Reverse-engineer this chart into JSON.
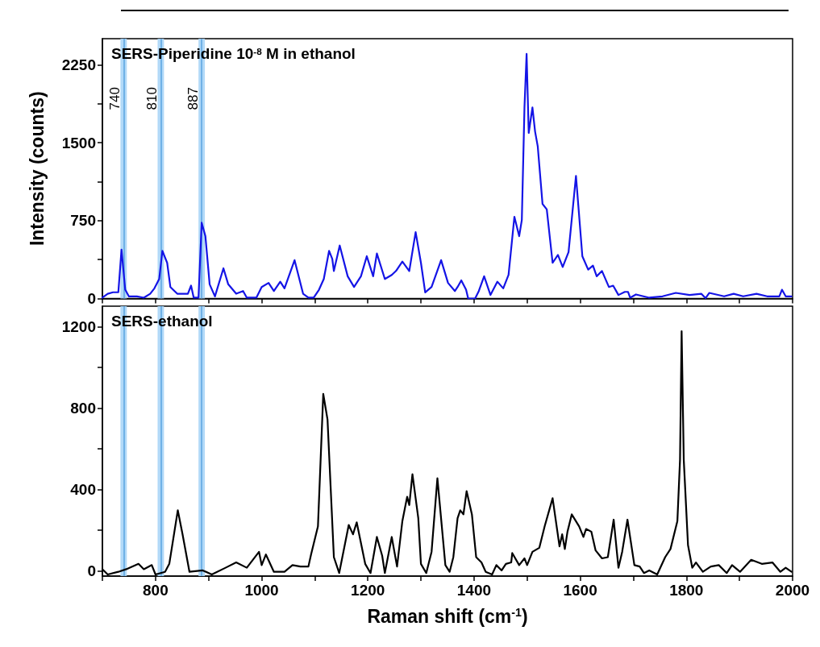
{
  "chart_data": [
    {
      "type": "line",
      "title": "SERS-Piperidine 10$^{-8}$ M in ethanol",
      "ylabel": "Intensity (counts)",
      "xlim": [
        700,
        2000
      ],
      "ylim": [
        0,
        2500
      ],
      "tick_labels": "y",
      "marker": "none",
      "line_style": "solid",
      "grid": false,
      "xticks": [
        {
          "value": 700,
          "label": null
        },
        {
          "value": 800,
          "label": null
        },
        {
          "value": 900,
          "label": null
        },
        {
          "value": 1000,
          "label": null
        },
        {
          "value": 1100,
          "label": null
        },
        {
          "value": 1200,
          "label": null
        },
        {
          "value": 1300,
          "label": null
        },
        {
          "value": 1400,
          "label": null
        },
        {
          "value": 1500,
          "label": null
        },
        {
          "value": 1600,
          "label": null
        },
        {
          "value": 1700,
          "label": null
        },
        {
          "value": 1800,
          "label": null
        },
        {
          "value": 1900,
          "label": null
        },
        {
          "value": 2000,
          "label": null
        }
      ],
      "yticks": [
        0,
        {
          "value": 375,
          "label": null
        },
        750,
        {
          "value": 1125,
          "label": null
        },
        1500,
        {
          "value": 1875,
          "label": null
        },
        2250
      ],
      "bands": [
        {
          "axis": "x",
          "from": 734,
          "to": 746,
          "color": "#a9d5f7"
        },
        {
          "axis": "x",
          "from": 804,
          "to": 816,
          "color": "#a9d5f7"
        },
        {
          "axis": "x",
          "from": 881,
          "to": 893,
          "color": "#a9d5f7"
        }
      ],
      "ref_lines": [
        {
          "axis": "x",
          "value": 740,
          "label": "740",
          "color": "#5ba3e0"
        },
        {
          "axis": "x",
          "value": 810,
          "label": "810",
          "color": "#5ba3e0"
        },
        {
          "axis": "x",
          "value": 887,
          "label": "887",
          "color": "#5ba3e0"
        }
      ],
      "series": [
        {
          "color": "#1414e6",
          "x": [
            700,
            710,
            720,
            730,
            736,
            743,
            750,
            765,
            778,
            790,
            798,
            807,
            813,
            822,
            828,
            841,
            861,
            867,
            872,
            881,
            887,
            894,
            902,
            912,
            928,
            937,
            952,
            965,
            972,
            990,
            1000,
            1013,
            1023,
            1035,
            1043,
            1062,
            1078,
            1088,
            1098,
            1108,
            1117,
            1127,
            1133,
            1136,
            1147,
            1162,
            1174,
            1187,
            1198,
            1210,
            1217,
            1232,
            1245,
            1253,
            1265,
            1278,
            1290,
            1300,
            1308,
            1320,
            1338,
            1351,
            1364,
            1369,
            1376,
            1385,
            1389,
            1402,
            1409,
            1419,
            1431,
            1444,
            1455,
            1465,
            1476,
            1485,
            1490,
            1495,
            1499,
            1503,
            1510,
            1515,
            1520,
            1529,
            1537,
            1548,
            1558,
            1567,
            1578,
            1592,
            1604,
            1615,
            1624,
            1631,
            1641,
            1654,
            1662,
            1672,
            1684,
            1690,
            1694,
            1705,
            1730,
            1755,
            1780,
            1806,
            1828,
            1836,
            1843,
            1871,
            1889,
            1907,
            1932,
            1952,
            1975,
            1980,
            1987,
            1998
          ],
          "values": [
            8,
            46,
            60,
            60,
            470,
            85,
            20,
            20,
            8,
            46,
            98,
            188,
            459,
            343,
            111,
            46,
            46,
            124,
            8,
            8,
            729,
            600,
            137,
            20,
            291,
            137,
            46,
            72,
            8,
            8,
            111,
            150,
            72,
            162,
            98,
            369,
            46,
            8,
            8,
            85,
            188,
            459,
            381,
            265,
            510,
            214,
            111,
            214,
            407,
            214,
            433,
            188,
            227,
            265,
            356,
            265,
            639,
            343,
            59,
            111,
            369,
            150,
            72,
            111,
            175,
            85,
            0,
            0,
            72,
            214,
            34,
            162,
            98,
            227,
            786,
            600,
            755,
            1838,
            2353,
            1593,
            1838,
            1606,
            1464,
            910,
            858,
            343,
            420,
            304,
            446,
            1180,
            407,
            278,
            317,
            214,
            265,
            111,
            124,
            34,
            64,
            64,
            8,
            39,
            8,
            21,
            54,
            34,
            46,
            3,
            54,
            21,
            46,
            21,
            46,
            21,
            21,
            85,
            21,
            21
          ]
        }
      ]
    },
    {
      "type": "line",
      "title": "SERS-ethanol",
      "xlabel": "Raman shift (cm$^{-1}$)",
      "xlim": [
        700,
        2000
      ],
      "ylim": [
        -25,
        1300
      ],
      "marker": "none",
      "line_style": "solid",
      "grid": false,
      "xticks": [
        {
          "value": 700,
          "label": null
        },
        800,
        {
          "value": 900,
          "label": null
        },
        1000,
        {
          "value": 1100,
          "label": null
        },
        1200,
        {
          "value": 1300,
          "label": null
        },
        1400,
        {
          "value": 1500,
          "label": null
        },
        1600,
        {
          "value": 1700,
          "label": null
        },
        1800,
        {
          "value": 1900,
          "label": null
        },
        2000
      ],
      "yticks": [
        0,
        {
          "value": 200,
          "label": null
        },
        400,
        {
          "value": 600,
          "label": null
        },
        800,
        {
          "value": 1000,
          "label": null
        },
        1200
      ],
      "bands": [
        {
          "axis": "x",
          "from": 734,
          "to": 746,
          "color": "#a9d5f7"
        },
        {
          "axis": "x",
          "from": 804,
          "to": 816,
          "color": "#a9d5f7"
        },
        {
          "axis": "x",
          "from": 881,
          "to": 893,
          "color": "#a9d5f7"
        }
      ],
      "ref_lines": [
        {
          "axis": "x",
          "value": 740,
          "color": "#5ba3e0"
        },
        {
          "axis": "x",
          "value": 810,
          "color": "#5ba3e0"
        },
        {
          "axis": "x",
          "value": 887,
          "color": "#5ba3e0"
        }
      ],
      "series": [
        {
          "color": "#000000",
          "x": [
            700,
            710,
            730,
            745,
            768,
            778,
            793,
            800,
            818,
            826,
            842,
            851,
            864,
            889,
            906,
            932,
            952,
            972,
            995,
            1000,
            1008,
            1023,
            1043,
            1058,
            1073,
            1088,
            1093,
            1106,
            1116,
            1124,
            1136,
            1146,
            1164,
            1172,
            1179,
            1195,
            1205,
            1217,
            1227,
            1232,
            1245,
            1255,
            1265,
            1274,
            1278,
            1284,
            1295,
            1300,
            1310,
            1320,
            1331,
            1346,
            1354,
            1361,
            1369,
            1374,
            1380,
            1386,
            1396,
            1404,
            1414,
            1422,
            1434,
            1442,
            1452,
            1460,
            1470,
            1472,
            1485,
            1495,
            1500,
            1510,
            1523,
            1533,
            1548,
            1561,
            1566,
            1571,
            1576,
            1584,
            1598,
            1606,
            1611,
            1621,
            1629,
            1641,
            1652,
            1663,
            1672,
            1679,
            1689,
            1702,
            1712,
            1720,
            1730,
            1745,
            1760,
            1770,
            1783,
            1788,
            1791,
            1795,
            1803,
            1811,
            1818,
            1831,
            1846,
            1861,
            1876,
            1886,
            1901,
            1922,
            1942,
            1962,
            1977,
            1987,
            1998
          ],
          "values": [
            9,
            -17,
            -4,
            9,
            35,
            9,
            29,
            -17,
            -4,
            35,
            298,
            180,
            -4,
            3,
            -17,
            16,
            42,
            16,
            94,
            29,
            81,
            -4,
            -4,
            29,
            22,
            22,
            81,
            219,
            869,
            744,
            68,
            -10,
            226,
            180,
            239,
            35,
            -10,
            167,
            75,
            -10,
            167,
            22,
            245,
            364,
            324,
            475,
            259,
            35,
            -10,
            94,
            455,
            29,
            -4,
            68,
            259,
            298,
            278,
            392,
            278,
            68,
            42,
            -4,
            -17,
            29,
            3,
            35,
            42,
            88,
            29,
            62,
            29,
            94,
            114,
            219,
            357,
            121,
            180,
            108,
            193,
            278,
            219,
            167,
            206,
            193,
            101,
            62,
            68,
            252,
            16,
            94,
            252,
            29,
            22,
            -10,
            3,
            -17,
            68,
            108,
            245,
            547,
            1177,
            547,
            127,
            16,
            42,
            -4,
            22,
            29,
            -10,
            29,
            -4,
            55,
            35,
            42,
            -4,
            16,
            -4
          ]
        }
      ]
    }
  ]
}
